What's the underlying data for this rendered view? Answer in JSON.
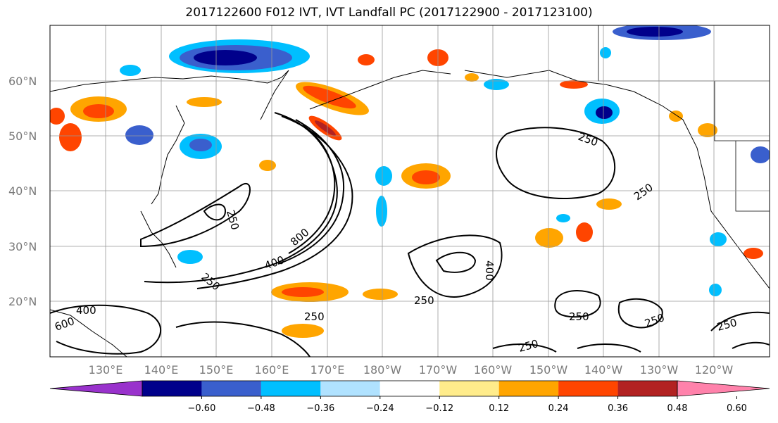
{
  "title": "2017122600 F012 IVT, IVT Landfall PC (2017122900 - 2017123100)",
  "lat_labels": [
    "60°N",
    "50°N",
    "40°N",
    "30°N",
    "20°N"
  ],
  "lon_labels": [
    "130°E",
    "140°E",
    "150°E",
    "160°E",
    "170°E",
    "180°W",
    "170°W",
    "160°W",
    "150°W",
    "140°W",
    "130°W",
    "120°W"
  ],
  "colorbar": {
    "colors": [
      "#9932cc",
      "#00008b",
      "#3a5fcd",
      "#00bfff",
      "#b0e2ff",
      "#ffffff",
      "#ffec8b",
      "#ffa500",
      "#ff4500",
      "#b22222",
      "#ff82ab"
    ],
    "ticks": [
      "−0.60",
      "−0.48",
      "−0.36",
      "−0.24",
      "−0.12",
      "0.12",
      "0.24",
      "0.36",
      "0.48",
      "0.60"
    ]
  },
  "contour_labels": [
    "250",
    "250",
    "250",
    "250",
    "250",
    "250",
    "250",
    "250",
    "250",
    "250",
    "400",
    "400",
    "400",
    "600",
    "800"
  ]
}
